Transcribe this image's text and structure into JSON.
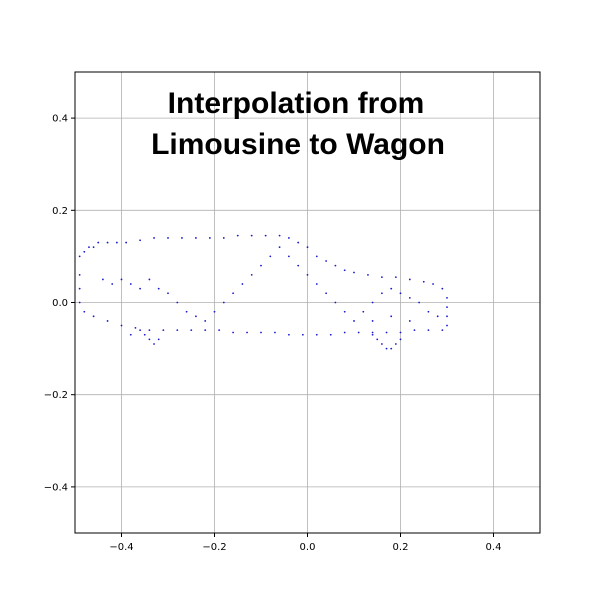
{
  "chart_data": {
    "type": "scatter",
    "title_lines": [
      "Interpolation from",
      "Limousine to Wagon"
    ],
    "xlabel": "",
    "ylabel": "",
    "xlim": [
      -0.5,
      0.5
    ],
    "ylim": [
      -0.5,
      0.5
    ],
    "x_ticks": [
      -0.4,
      -0.2,
      0.0,
      0.2,
      0.4
    ],
    "y_ticks": [
      -0.4,
      -0.2,
      0.0,
      0.2,
      0.4
    ],
    "x_tick_labels": [
      "−0.4",
      "−0.2",
      "0.0",
      "0.2",
      "0.4"
    ],
    "y_tick_labels": [
      "−0.4",
      "−0.2",
      "0.0",
      "0.2",
      "0.4"
    ],
    "grid": true,
    "point_color": "#1a1acc",
    "points": [
      [
        -0.49,
        0.1
      ],
      [
        -0.48,
        0.11
      ],
      [
        -0.47,
        0.12
      ],
      [
        -0.46,
        0.12
      ],
      [
        -0.45,
        0.13
      ],
      [
        -0.43,
        0.13
      ],
      [
        -0.41,
        0.13
      ],
      [
        -0.39,
        0.13
      ],
      [
        -0.36,
        0.135
      ],
      [
        -0.33,
        0.14
      ],
      [
        -0.3,
        0.14
      ],
      [
        -0.27,
        0.14
      ],
      [
        -0.24,
        0.14
      ],
      [
        -0.21,
        0.14
      ],
      [
        -0.18,
        0.14
      ],
      [
        -0.15,
        0.145
      ],
      [
        -0.12,
        0.145
      ],
      [
        -0.09,
        0.145
      ],
      [
        -0.06,
        0.145
      ],
      [
        -0.04,
        0.14
      ],
      [
        -0.02,
        0.13
      ],
      [
        0.0,
        0.12
      ],
      [
        0.02,
        0.1
      ],
      [
        0.04,
        0.09
      ],
      [
        0.06,
        0.08
      ],
      [
        0.08,
        0.07
      ],
      [
        0.1,
        0.065
      ],
      [
        0.13,
        0.06
      ],
      [
        0.16,
        0.055
      ],
      [
        0.19,
        0.055
      ],
      [
        0.22,
        0.05
      ],
      [
        0.25,
        0.045
      ],
      [
        0.27,
        0.04
      ],
      [
        0.29,
        0.03
      ],
      [
        0.3,
        0.01
      ],
      [
        0.3,
        -0.01
      ],
      [
        0.3,
        -0.03
      ],
      [
        0.3,
        -0.05
      ],
      [
        0.29,
        -0.06
      ],
      [
        0.26,
        -0.06
      ],
      [
        0.23,
        -0.06
      ],
      [
        0.2,
        -0.065
      ],
      [
        0.17,
        -0.065
      ],
      [
        0.14,
        -0.065
      ],
      [
        0.11,
        -0.065
      ],
      [
        0.08,
        -0.065
      ],
      [
        0.05,
        -0.07
      ],
      [
        0.02,
        -0.07
      ],
      [
        -0.01,
        -0.07
      ],
      [
        -0.04,
        -0.07
      ],
      [
        -0.07,
        -0.065
      ],
      [
        -0.1,
        -0.065
      ],
      [
        -0.13,
        -0.065
      ],
      [
        -0.16,
        -0.065
      ],
      [
        -0.19,
        -0.06
      ],
      [
        -0.22,
        -0.06
      ],
      [
        -0.25,
        -0.06
      ],
      [
        -0.28,
        -0.06
      ],
      [
        -0.31,
        -0.06
      ],
      [
        -0.34,
        -0.06
      ],
      [
        -0.37,
        -0.055
      ],
      [
        -0.4,
        -0.05
      ],
      [
        -0.43,
        -0.04
      ],
      [
        -0.46,
        -0.03
      ],
      [
        -0.48,
        -0.02
      ],
      [
        -0.49,
        0.0
      ],
      [
        -0.49,
        0.03
      ],
      [
        -0.49,
        0.06
      ],
      [
        -0.35,
        -0.07
      ],
      [
        -0.34,
        -0.08
      ],
      [
        -0.33,
        -0.09
      ],
      [
        -0.32,
        -0.08
      ],
      [
        -0.36,
        -0.06
      ],
      [
        -0.38,
        -0.07
      ],
      [
        0.15,
        -0.08
      ],
      [
        0.16,
        -0.09
      ],
      [
        0.17,
        -0.1
      ],
      [
        0.18,
        -0.1
      ],
      [
        0.19,
        -0.09
      ],
      [
        0.2,
        -0.08
      ],
      [
        0.14,
        -0.07
      ],
      [
        -0.44,
        0.05
      ],
      [
        -0.42,
        0.04
      ],
      [
        -0.4,
        0.05
      ],
      [
        -0.38,
        0.04
      ],
      [
        -0.36,
        0.03
      ],
      [
        -0.34,
        0.05
      ],
      [
        -0.32,
        0.03
      ],
      [
        -0.3,
        0.02
      ],
      [
        -0.28,
        0.0
      ],
      [
        -0.26,
        -0.02
      ],
      [
        -0.24,
        -0.03
      ],
      [
        -0.22,
        -0.04
      ],
      [
        -0.2,
        -0.02
      ],
      [
        -0.18,
        0.0
      ],
      [
        -0.16,
        0.02
      ],
      [
        -0.14,
        0.04
      ],
      [
        -0.12,
        0.06
      ],
      [
        -0.1,
        0.08
      ],
      [
        -0.08,
        0.1
      ],
      [
        -0.06,
        0.12
      ],
      [
        -0.04,
        0.1
      ],
      [
        -0.02,
        0.08
      ],
      [
        0.0,
        0.06
      ],
      [
        0.02,
        0.04
      ],
      [
        0.04,
        0.02
      ],
      [
        0.06,
        0.0
      ],
      [
        0.08,
        -0.02
      ],
      [
        0.1,
        -0.04
      ],
      [
        0.12,
        -0.02
      ],
      [
        0.14,
        0.0
      ],
      [
        0.16,
        0.02
      ],
      [
        0.18,
        0.03
      ],
      [
        0.2,
        0.02
      ],
      [
        0.22,
        0.01
      ],
      [
        0.24,
        0.0
      ],
      [
        0.26,
        -0.02
      ],
      [
        0.28,
        -0.03
      ],
      [
        0.22,
        -0.04
      ],
      [
        0.18,
        -0.03
      ],
      [
        0.14,
        -0.04
      ]
    ]
  }
}
